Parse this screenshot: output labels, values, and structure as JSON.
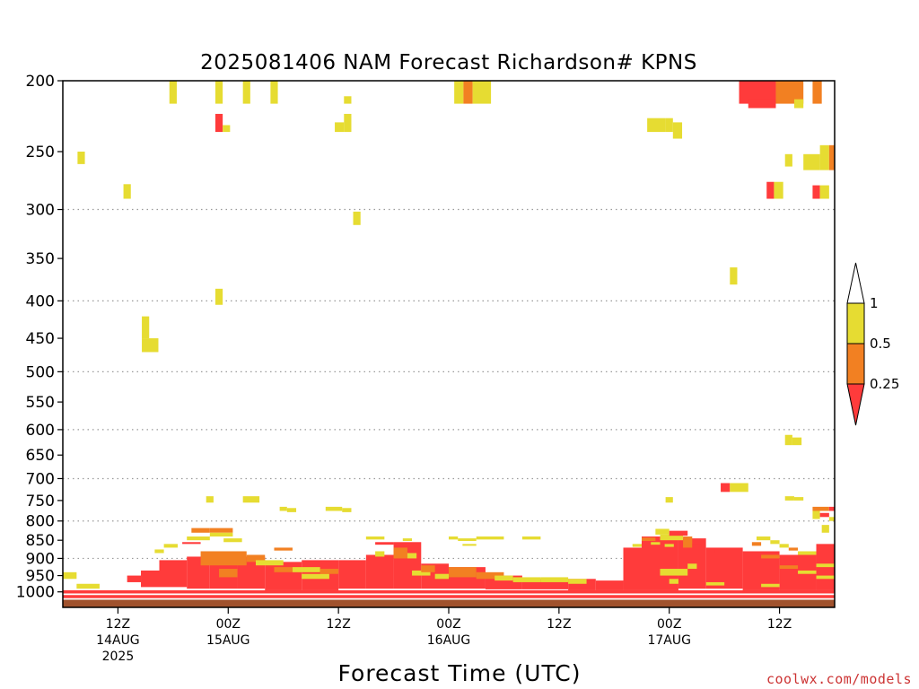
{
  "chart_data": {
    "type": "heatmap",
    "title": "2025081406 NAM Forecast Richardson# KPNS",
    "xlabel": "Forecast Time (UTC)",
    "ylabel": "",
    "credit": "coolwx.com/models",
    "x_unit": "hours after 2025-08-14 06Z",
    "xlim": [
      0,
      84
    ],
    "ylim": [
      1050,
      200
    ],
    "y_scale": "log",
    "grid": {
      "x": false,
      "y": "dotted"
    },
    "y_ticks": [
      200,
      250,
      300,
      350,
      400,
      450,
      500,
      550,
      600,
      650,
      700,
      750,
      800,
      850,
      900,
      950,
      1000
    ],
    "y_ticks_dotted": [
      300,
      400,
      500,
      600,
      700,
      800,
      900
    ],
    "y_tick_labels": [
      "200",
      "250",
      "300",
      "350",
      "400",
      "450",
      "500",
      "550",
      "600",
      "650",
      "700",
      "750",
      "800",
      "850",
      "900",
      "950",
      "1000"
    ],
    "x_ticks": [
      {
        "x": 6,
        "lines": [
          "12Z",
          "14AUG",
          "2025"
        ]
      },
      {
        "x": 18,
        "lines": [
          "00Z",
          "15AUG"
        ]
      },
      {
        "x": 30,
        "lines": [
          "12Z"
        ]
      },
      {
        "x": 42,
        "lines": [
          "00Z",
          "16AUG"
        ]
      },
      {
        "x": 54,
        "lines": [
          "12Z"
        ]
      },
      {
        "x": 66,
        "lines": [
          "00Z",
          "17AUG"
        ]
      },
      {
        "x": 78,
        "lines": [
          "12Z"
        ]
      }
    ],
    "legend": {
      "placement": "right",
      "levels": [
        "0.25",
        "0.5",
        "1"
      ],
      "bins": [
        {
          "range": "<0.25",
          "color": "#ff3b3b"
        },
        {
          "range": "0.25-0.5",
          "color": "#f28022"
        },
        {
          "range": "0.5-1",
          "color": "#e6dc32"
        },
        {
          "range": ">1",
          "color": "#ffffff"
        }
      ]
    },
    "ground_color": "#a0522d",
    "color_key": {
      "r": "#ff3b3b",
      "o": "#f28022",
      "y": "#e6dc32"
    },
    "cells": [
      [
        11.6,
        12.4,
        200,
        215,
        "y"
      ],
      [
        16.6,
        17.4,
        200,
        215,
        "y"
      ],
      [
        19.6,
        20.4,
        200,
        215,
        "y"
      ],
      [
        22.6,
        23.4,
        200,
        215,
        "y"
      ],
      [
        30.6,
        31.4,
        210,
        215,
        "y"
      ],
      [
        16.6,
        17.4,
        222,
        235,
        "r"
      ],
      [
        17.4,
        18.2,
        230,
        235,
        "y"
      ],
      [
        29.6,
        30.6,
        228,
        235,
        "y"
      ],
      [
        30.6,
        31.4,
        222,
        235,
        "y"
      ],
      [
        1.6,
        2.4,
        250,
        260,
        "y"
      ],
      [
        6.6,
        7.4,
        277,
        290,
        "y"
      ],
      [
        31.6,
        32.4,
        302,
        315,
        "y"
      ],
      [
        16.6,
        17.4,
        385,
        405,
        "y"
      ],
      [
        8.6,
        9.4,
        420,
        450,
        "y"
      ],
      [
        8.6,
        10.4,
        450,
        470,
        "y"
      ],
      [
        42.6,
        43.6,
        200,
        215,
        "y"
      ],
      [
        43.6,
        44.6,
        200,
        215,
        "o"
      ],
      [
        44.6,
        46.6,
        200,
        215,
        "y"
      ],
      [
        63.6,
        65.6,
        225,
        235,
        "y"
      ],
      [
        65.6,
        66.4,
        225,
        235,
        "y"
      ],
      [
        66.4,
        67.4,
        228,
        240,
        "y"
      ],
      [
        72.6,
        73.4,
        360,
        380,
        "y"
      ],
      [
        73.6,
        77.6,
        200,
        215,
        "r"
      ],
      [
        75.6,
        77.6,
        212,
        218,
        "r"
      ],
      [
        74.6,
        75.6,
        212,
        218,
        "r"
      ],
      [
        77.6,
        80.6,
        200,
        215,
        "o"
      ],
      [
        79.6,
        80.6,
        212,
        218,
        "y"
      ],
      [
        81.6,
        82.6,
        200,
        215,
        "o"
      ],
      [
        78.6,
        79.4,
        252,
        262,
        "y"
      ],
      [
        80.6,
        82.4,
        252,
        265,
        "y"
      ],
      [
        82.4,
        83.4,
        245,
        265,
        "y"
      ],
      [
        83.4,
        84,
        245,
        265,
        "o"
      ],
      [
        76.6,
        77.4,
        275,
        290,
        "r"
      ],
      [
        77.4,
        78.4,
        275,
        290,
        "y"
      ],
      [
        81.6,
        82.4,
        278,
        290,
        "r"
      ],
      [
        82.4,
        83.4,
        278,
        290,
        "y"
      ],
      [
        78.6,
        79.4,
        610,
        630,
        "y"
      ],
      [
        79.4,
        80.4,
        615,
        630,
        "y"
      ],
      [
        71.6,
        72.6,
        710,
        730,
        "r"
      ],
      [
        72.6,
        74.6,
        710,
        730,
        "y"
      ],
      [
        78.6,
        79.6,
        740,
        750,
        "y"
      ],
      [
        79.6,
        80.6,
        742,
        750,
        "y"
      ],
      [
        15.6,
        16.4,
        740,
        755,
        "y"
      ],
      [
        19.6,
        21.4,
        740,
        755,
        "y"
      ],
      [
        23.6,
        24.4,
        765,
        775,
        "y"
      ],
      [
        24.4,
        25.4,
        768,
        778,
        "y"
      ],
      [
        28.6,
        30.4,
        765,
        775,
        "y"
      ],
      [
        30.4,
        31.4,
        768,
        778,
        "y"
      ],
      [
        65.6,
        66.4,
        742,
        755,
        "y"
      ],
      [
        81.6,
        83.4,
        765,
        775,
        "o"
      ],
      [
        83.4,
        84,
        765,
        775,
        "r"
      ],
      [
        81.6,
        82.4,
        775,
        795,
        "y"
      ],
      [
        82.4,
        83.4,
        780,
        790,
        "r"
      ],
      [
        83.4,
        84,
        790,
        800,
        "y"
      ],
      [
        82.6,
        83.4,
        810,
        830,
        "y"
      ],
      [
        0.0,
        1.5,
        940,
        960,
        "y"
      ],
      [
        1.5,
        4,
        975,
        990,
        "y"
      ],
      [
        7,
        8.5,
        950,
        970,
        "r"
      ],
      [
        8.5,
        10.5,
        935,
        985,
        "r"
      ],
      [
        10.5,
        13.5,
        905,
        985,
        "r"
      ],
      [
        13.5,
        16,
        895,
        990,
        "r"
      ],
      [
        16,
        19,
        885,
        990,
        "r"
      ],
      [
        19,
        22,
        895,
        990,
        "r"
      ],
      [
        22,
        26,
        910,
        995,
        "r"
      ],
      [
        26,
        30,
        905,
        995,
        "r"
      ],
      [
        30,
        33,
        905,
        990,
        "r"
      ],
      [
        33,
        36,
        890,
        990,
        "r"
      ],
      [
        36,
        39,
        855,
        990,
        "r"
      ],
      [
        39,
        42,
        915,
        990,
        "r"
      ],
      [
        42,
        46,
        925,
        990,
        "r"
      ],
      [
        46,
        50,
        950,
        992,
        "r"
      ],
      [
        50,
        55,
        960,
        992,
        "r"
      ],
      [
        55,
        58,
        960,
        995,
        "r"
      ],
      [
        58,
        61,
        965,
        995,
        "r"
      ],
      [
        61,
        63,
        870,
        995,
        "r"
      ],
      [
        63,
        67,
        840,
        995,
        "r"
      ],
      [
        67,
        70,
        845,
        990,
        "r"
      ],
      [
        70,
        74,
        870,
        990,
        "r"
      ],
      [
        74,
        78,
        880,
        995,
        "r"
      ],
      [
        78,
        82,
        890,
        995,
        "r"
      ],
      [
        82,
        84,
        860,
        995,
        "r"
      ],
      [
        0,
        84,
        995,
        1005,
        "r"
      ],
      [
        0,
        84,
        1010,
        1020,
        "r"
      ],
      [
        14,
        16,
        818,
        830,
        "o"
      ],
      [
        16,
        18.5,
        818,
        830,
        "o"
      ],
      [
        13.5,
        16,
        840,
        850,
        "y"
      ],
      [
        16,
        18.5,
        830,
        840,
        "y"
      ],
      [
        17.5,
        19.5,
        845,
        855,
        "y"
      ],
      [
        13,
        15,
        855,
        860,
        "r"
      ],
      [
        11,
        12.5,
        860,
        870,
        "y"
      ],
      [
        10,
        11,
        875,
        885,
        "y"
      ],
      [
        15,
        20,
        880,
        920,
        "o"
      ],
      [
        20,
        22,
        890,
        910,
        "o"
      ],
      [
        17,
        19,
        930,
        955,
        "o"
      ],
      [
        21,
        24,
        905,
        920,
        "y"
      ],
      [
        23,
        25,
        925,
        940,
        "o"
      ],
      [
        25,
        28,
        925,
        940,
        "y"
      ],
      [
        26,
        29,
        945,
        960,
        "y"
      ],
      [
        28,
        30,
        930,
        945,
        "o"
      ],
      [
        34,
        35,
        880,
        895,
        "y"
      ],
      [
        36,
        37.5,
        870,
        900,
        "o"
      ],
      [
        37.5,
        38.5,
        885,
        900,
        "y"
      ],
      [
        38,
        40,
        935,
        950,
        "y"
      ],
      [
        39,
        40.5,
        920,
        940,
        "o"
      ],
      [
        40.5,
        42,
        945,
        960,
        "y"
      ],
      [
        42,
        45,
        925,
        955,
        "o"
      ],
      [
        45,
        48,
        940,
        960,
        "o"
      ],
      [
        47,
        49,
        950,
        965,
        "y"
      ],
      [
        49,
        52,
        955,
        970,
        "y"
      ],
      [
        52,
        55,
        955,
        970,
        "y"
      ],
      [
        55,
        57,
        960,
        975,
        "y"
      ],
      [
        33,
        35,
        840,
        848,
        "y"
      ],
      [
        37,
        38,
        845,
        852,
        "y"
      ],
      [
        42,
        43,
        840,
        848,
        "y"
      ],
      [
        43,
        45,
        845,
        852,
        "y"
      ],
      [
        45,
        48,
        840,
        848,
        "y"
      ],
      [
        50,
        52,
        840,
        848,
        "y"
      ],
      [
        43.5,
        45,
        860,
        865,
        "y"
      ],
      [
        23,
        25,
        870,
        878,
        "o"
      ],
      [
        34,
        36,
        855,
        862,
        "r"
      ],
      [
        62,
        63,
        860,
        868,
        "y"
      ],
      [
        63,
        64.5,
        843,
        852,
        "o"
      ],
      [
        64,
        65,
        855,
        862,
        "y"
      ],
      [
        64.5,
        66,
        820,
        835,
        "y"
      ],
      [
        65,
        67.5,
        835,
        850,
        "y"
      ],
      [
        66,
        68,
        825,
        838,
        "r"
      ],
      [
        67.5,
        68.5,
        840,
        870,
        "o"
      ],
      [
        65.5,
        66.5,
        860,
        868,
        "y"
      ],
      [
        68.5,
        69.5,
        860,
        870,
        "r"
      ],
      [
        71,
        72,
        875,
        885,
        "r"
      ],
      [
        68,
        69,
        915,
        930,
        "y"
      ],
      [
        65,
        68,
        930,
        950,
        "y"
      ],
      [
        75.5,
        77,
        840,
        850,
        "y"
      ],
      [
        77,
        78,
        850,
        860,
        "y"
      ],
      [
        75,
        76,
        855,
        865,
        "o"
      ],
      [
        78,
        79,
        860,
        870,
        "y"
      ],
      [
        79,
        80,
        870,
        878,
        "o"
      ],
      [
        80,
        82,
        880,
        890,
        "y"
      ],
      [
        76,
        78,
        890,
        900,
        "o"
      ],
      [
        78,
        80,
        920,
        930,
        "o"
      ],
      [
        80,
        82,
        935,
        945,
        "y"
      ],
      [
        82,
        84,
        915,
        925,
        "y"
      ],
      [
        82,
        84,
        950,
        960,
        "y"
      ],
      [
        76,
        78,
        975,
        985,
        "y"
      ],
      [
        70,
        72,
        970,
        980,
        "y"
      ],
      [
        66,
        67,
        960,
        975,
        "y"
      ]
    ]
  }
}
